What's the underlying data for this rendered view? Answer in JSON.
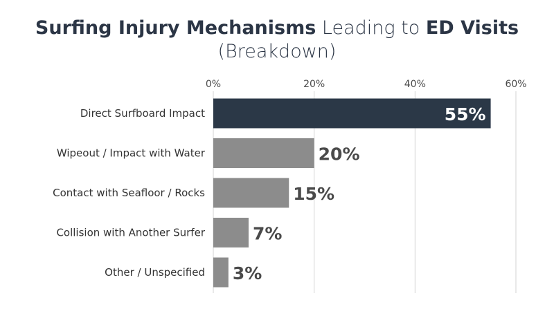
{
  "chart_data": {
    "type": "bar",
    "orientation": "horizontal",
    "title_parts": [
      {
        "text": "Surfing Injury Mechanisms",
        "weight": "bold"
      },
      {
        "text": " Leading to ",
        "weight": "light"
      },
      {
        "text": "ED Visits",
        "weight": "bold"
      }
    ],
    "subtitle": "(Breakdown)",
    "categories": [
      "Direct Surfboard Impact",
      "Wipeout / Impact with Water",
      "Contact with Seafloor / Rocks",
      "Collision with Another Surfer",
      "Other / Unspecified"
    ],
    "values": [
      55,
      20,
      15,
      7,
      3
    ],
    "value_labels": [
      "55%",
      "20%",
      "15%",
      "7%",
      "3%"
    ],
    "xlim": [
      0,
      60
    ],
    "xticks": [
      0,
      20,
      40,
      60
    ],
    "xtick_labels": [
      "0%",
      "20%",
      "40%",
      "60%"
    ],
    "axis_position": "top",
    "grid": true,
    "highlight_index": 0,
    "colors": {
      "highlight_bar": "#2b3847",
      "other_bar": "#8c8c8c",
      "highlight_label": "#ffffff",
      "other_label": "#4a4a4a",
      "grid": "#d3d3d3",
      "title": "#2b3545"
    }
  }
}
